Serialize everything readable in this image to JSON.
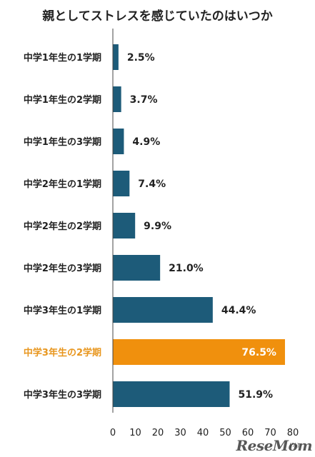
{
  "chart_data": {
    "type": "bar",
    "orientation": "horizontal",
    "title": "親としてストレスを感じていたのはいつか",
    "categories": [
      "中学1年生の1学期",
      "中学1年生の2学期",
      "中学1年生の3学期",
      "中学2年生の1学期",
      "中学2年生の2学期",
      "中学2年生の3学期",
      "中学3年生の1学期",
      "中学3年生の2学期",
      "中学3年生の3学期"
    ],
    "values": [
      2.5,
      3.7,
      4.9,
      7.4,
      9.9,
      21.0,
      44.4,
      76.5,
      51.9
    ],
    "value_labels": [
      "2.5%",
      "3.7%",
      "4.9%",
      "7.4%",
      "9.9%",
      "21.0%",
      "44.4%",
      "76.5%",
      "51.9%"
    ],
    "highlight_index": 7,
    "xlim": [
      0,
      80
    ],
    "xticks": [
      "0",
      "10",
      "20",
      "30",
      "40",
      "50",
      "60",
      "70",
      "80"
    ],
    "unit_label": "(%)",
    "grid": false,
    "colors": {
      "bar": "#1d5b79",
      "highlight": "#f0900d",
      "highlight_label": "#e8961e",
      "label": "#222222",
      "highlight_value_text": "#ffffff"
    }
  },
  "watermark": "ReseMom"
}
